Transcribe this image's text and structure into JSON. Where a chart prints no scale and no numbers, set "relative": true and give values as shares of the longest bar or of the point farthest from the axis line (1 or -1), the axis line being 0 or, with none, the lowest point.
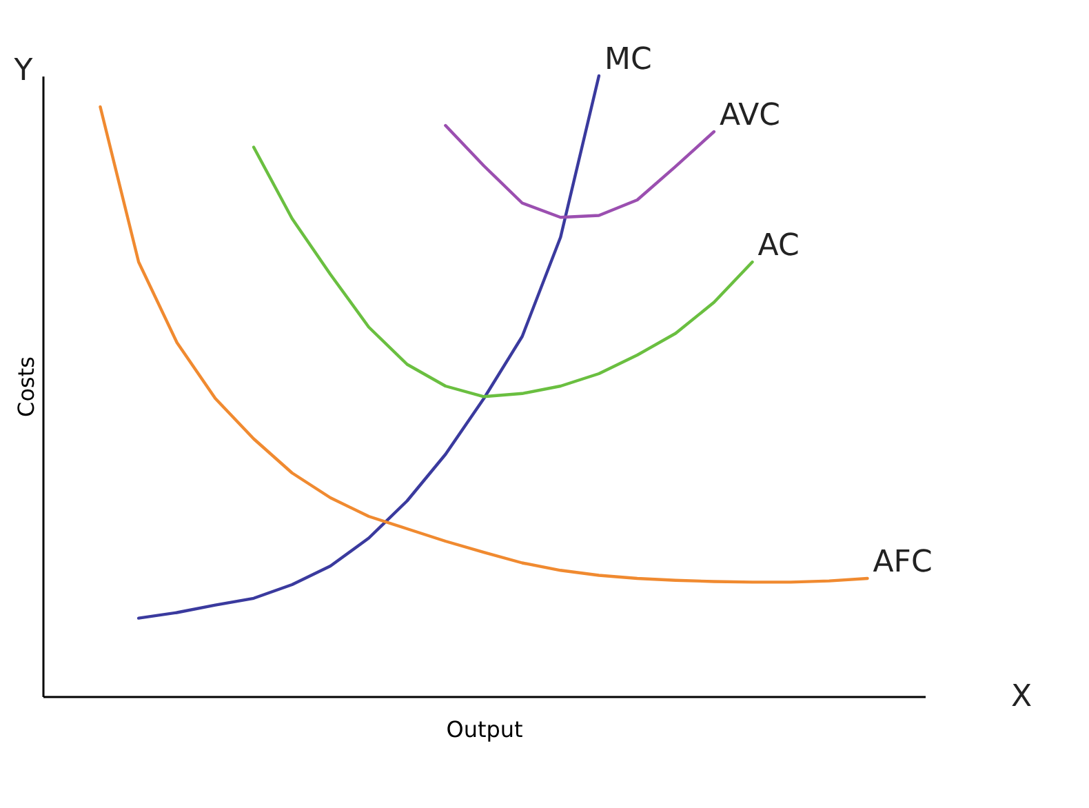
{
  "chart_data": {
    "type": "line",
    "xlabel": "Output",
    "ylabel": "Costs",
    "relative": true,
    "grid": false,
    "legend": false,
    "marker": "none",
    "line_style": "solid",
    "annotations": [
      "Y",
      "X"
    ],
    "categories": [
      null,
      null,
      null,
      null,
      null,
      null,
      null,
      null,
      null,
      null,
      null,
      null,
      null,
      null,
      null,
      null,
      null,
      null,
      null,
      null,
      null,
      null,
      null
    ],
    "series": [
      {
        "name": "MC",
        "color": "#3a3a9e",
        "values": [
          null,
          null,
          0.126,
          0.135,
          0.147,
          0.158,
          0.18,
          0.21,
          0.255,
          0.315,
          0.39,
          0.48,
          0.58,
          0.74,
          1.0,
          null,
          null,
          null,
          null,
          null,
          null,
          null,
          null
        ]
      },
      {
        "name": "AVC",
        "color": "#9b4fb0",
        "values": [
          null,
          null,
          null,
          null,
          null,
          null,
          null,
          null,
          null,
          null,
          0.92,
          0.855,
          0.795,
          0.772,
          0.775,
          0.8,
          0.854,
          0.91,
          null,
          null,
          null,
          null,
          null
        ]
      },
      {
        "name": "AC",
        "color": "#6abf40",
        "values": [
          null,
          null,
          null,
          null,
          null,
          0.885,
          0.77,
          0.68,
          0.595,
          0.535,
          0.5,
          0.483,
          0.488,
          0.5,
          0.52,
          0.55,
          0.585,
          0.635,
          0.7,
          null,
          null,
          null,
          null
        ]
      },
      {
        "name": "AFC",
        "color": "#f08a30",
        "values": [
          null,
          0.95,
          0.7,
          0.57,
          0.48,
          0.415,
          0.36,
          0.32,
          0.29,
          0.27,
          0.25,
          0.232,
          0.215,
          0.203,
          0.195,
          0.19,
          0.187,
          0.185,
          0.184,
          0.184,
          0.186,
          0.19,
          null
        ]
      }
    ]
  }
}
